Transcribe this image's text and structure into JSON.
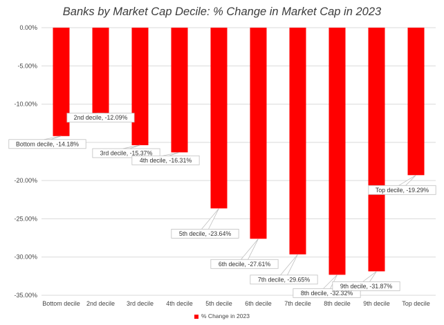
{
  "chart_data": {
    "type": "bar",
    "title": "Banks by Market Cap Decile: % Change in Market Cap in 2023",
    "categories": [
      "Bottom decile",
      "2nd decile",
      "3rd decile",
      "4th decile",
      "5th decile",
      "6th decile",
      "7th decile",
      "8th decile",
      "9th decile",
      "Top decile"
    ],
    "series": [
      {
        "name": "% Change in 2023",
        "values": [
          -14.18,
          -12.09,
          -15.37,
          -16.31,
          -23.64,
          -27.61,
          -29.65,
          -32.32,
          -31.87,
          -19.29
        ],
        "color": "#ff0000"
      }
    ],
    "data_labels": [
      "Bottom decile, -14.18%",
      "2nd decile, -12.09%",
      "3rd decile, -15.37%",
      "4th decile, -16.31%",
      "5th decile, -23.64%",
      "6th decile, -27.61%",
      "7th decile, -29.65%",
      "8th decile, -32.32%",
      "9th decile, -31.87%",
      "Top decile, -19.29%"
    ],
    "y_ticks": [
      "0.00%",
      "-5.00%",
      "-10.00%",
      "-15.00%",
      "-20.00%",
      "-25.00%",
      "-30.00%",
      "-35.00%"
    ],
    "ylim": [
      -35,
      0
    ],
    "xlabel": "",
    "ylabel": "",
    "grid": true,
    "legend_position": "bottom"
  }
}
